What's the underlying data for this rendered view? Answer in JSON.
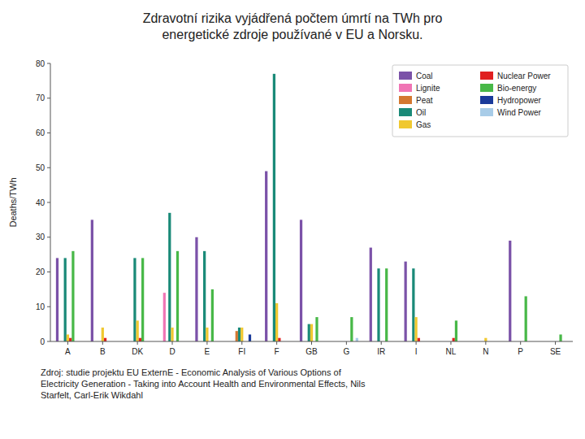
{
  "chart_data": {
    "type": "bar",
    "title": "Zdravotní rizika vyjádřená počtem úmrtí na TWh pro\nenergetické zdroje používané v EU a Norsku.",
    "y_label": "Deaths/TWh",
    "categories": [
      "A",
      "B",
      "DK",
      "D",
      "E",
      "FI",
      "F",
      "GB",
      "G",
      "IR",
      "I",
      "NL",
      "N",
      "P",
      "SE"
    ],
    "series": [
      {
        "name": "Coal",
        "color": "#7b52a8",
        "values": [
          24,
          35,
          0,
          0,
          30,
          0,
          49,
          35,
          0,
          27,
          23,
          0,
          0,
          29,
          0
        ]
      },
      {
        "name": "Lignite",
        "color": "#f075b5",
        "values": [
          0,
          0,
          0,
          14,
          0,
          0,
          0,
          0,
          0,
          0,
          0,
          0,
          0,
          0,
          0
        ]
      },
      {
        "name": "Peat",
        "color": "#d47830",
        "values": [
          0,
          0,
          0,
          0,
          0,
          3,
          0,
          0,
          0,
          0,
          0,
          0,
          0,
          0,
          0
        ]
      },
      {
        "name": "Oil",
        "color": "#1a8a78",
        "values": [
          24,
          0,
          24,
          37,
          26,
          4,
          77,
          5,
          0,
          21,
          21,
          0,
          0,
          0,
          0
        ]
      },
      {
        "name": "Gas",
        "color": "#f0c830",
        "values": [
          2,
          4,
          6,
          4,
          4,
          4,
          11,
          5,
          0,
          0,
          7,
          0,
          1,
          0,
          0
        ]
      },
      {
        "name": "Nuclear Power",
        "color": "#e02020",
        "values": [
          1,
          1,
          1,
          0,
          0,
          0,
          1,
          0,
          0,
          0,
          1,
          1,
          0,
          0,
          0
        ]
      },
      {
        "name": "Bio-energy",
        "color": "#48b848",
        "values": [
          26,
          0,
          24,
          26,
          15,
          0,
          0,
          7,
          7,
          21,
          0,
          6,
          0,
          13,
          2
        ]
      },
      {
        "name": "Hydropower",
        "color": "#1a3a9a",
        "values": [
          0,
          0,
          0,
          0,
          0,
          2,
          0,
          0,
          0,
          0,
          0,
          0,
          0,
          0,
          0
        ]
      },
      {
        "name": "Wind Power",
        "color": "#a8cce8",
        "values": [
          0,
          0,
          0,
          0,
          0,
          0,
          0,
          0,
          1,
          0,
          0,
          0,
          0,
          0,
          0
        ]
      }
    ],
    "ylim": [
      0,
      80
    ],
    "yticks": [
      0,
      10,
      20,
      30,
      40,
      50,
      60,
      70,
      80
    ],
    "grid": false,
    "legend": "upper right",
    "annotations": [
      "Zdroj: studie projektu EU ExternE - Economic Analysis of Various Options of\nElectricity Generation - Taking into Account Health and Environmental Effects, Nils\nStarfelt, Carl-Erik Wikdahl"
    ]
  }
}
